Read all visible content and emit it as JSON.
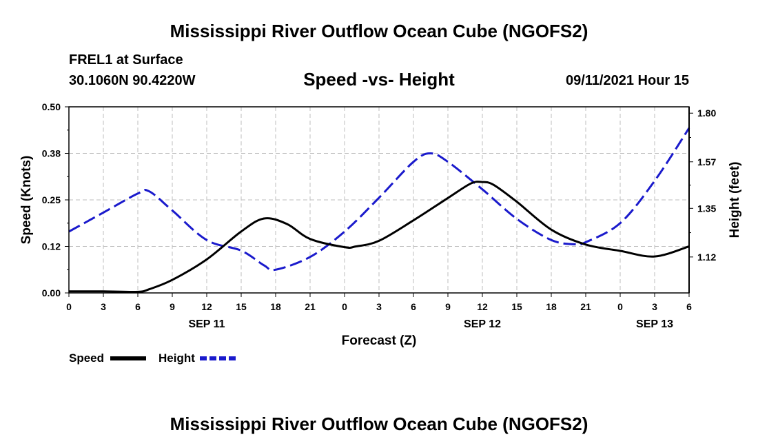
{
  "header": {
    "main_title": "Mississippi River Outflow Ocean Cube (NGOFS2)",
    "station": "FREL1 at Surface",
    "coordinates": "30.1060N  90.4220W",
    "subtitle": "Speed -vs- Height",
    "datetime": "09/11/2021 Hour 15"
  },
  "footer": {
    "title": "Mississippi River Outflow Ocean Cube (NGOFS2)"
  },
  "chart_data": {
    "type": "line",
    "title": "Speed -vs- Height",
    "xlabel": "Forecast (Z)",
    "ylabel_left": "Speed (Knots)",
    "ylabel_right": "Height (feet)",
    "x_range": [
      0,
      54
    ],
    "x_unit": "hours from 09/11/2021 00Z",
    "x_ticks": [
      0,
      3,
      6,
      9,
      12,
      15,
      18,
      21,
      24,
      27,
      30,
      33,
      36,
      39,
      42,
      45,
      48,
      51,
      54
    ],
    "x_tick_labels": [
      "0",
      "3",
      "6",
      "9",
      "12",
      "15",
      "18",
      "21",
      "0",
      "3",
      "6",
      "9",
      "12",
      "15",
      "18",
      "21",
      "0",
      "3",
      "6"
    ],
    "date_labels": [
      {
        "x": 12,
        "label": "SEP 11"
      },
      {
        "x": 36,
        "label": "SEP 12"
      },
      {
        "x": 51,
        "label": "SEP 13"
      }
    ],
    "left_axis": {
      "range": [
        0,
        0.5
      ],
      "ticks": [
        0.0,
        0.125,
        0.25,
        0.375,
        0.5
      ],
      "tick_labels": [
        "0.00",
        "0.12",
        "0.25",
        "0.38",
        "0.50"
      ]
    },
    "right_axis": {
      "range": [
        0.95,
        1.83
      ],
      "ticks": [
        1.12,
        1.35,
        1.57,
        1.8
      ],
      "tick_labels": [
        "1.12",
        "1.35",
        "1.57",
        "1.80"
      ]
    },
    "grid": true,
    "series": [
      {
        "name": "Speed",
        "axis": "left",
        "color": "#000000",
        "dash": "solid",
        "x": [
          0,
          3,
          6,
          7,
          9,
          12,
          15,
          17,
          19,
          21,
          24,
          25,
          27,
          30,
          33,
          35,
          36,
          37,
          39,
          42,
          45,
          48,
          51,
          54
        ],
        "values": [
          0.004,
          0.004,
          0.003,
          0.01,
          0.035,
          0.09,
          0.165,
          0.2,
          0.185,
          0.145,
          0.123,
          0.125,
          0.14,
          0.195,
          0.255,
          0.294,
          0.298,
          0.29,
          0.245,
          0.17,
          0.13,
          0.113,
          0.098,
          0.125
        ]
      },
      {
        "name": "Height",
        "axis": "right",
        "color": "#1a1acc",
        "dash": "dashed",
        "x": [
          0,
          3,
          6,
          7,
          9,
          12,
          15,
          17,
          18,
          21,
          24,
          27,
          30,
          31.5,
          33,
          36,
          39,
          42,
          44,
          45,
          48,
          51,
          54
        ],
        "values": [
          1.24,
          1.33,
          1.42,
          1.43,
          1.34,
          1.2,
          1.15,
          1.08,
          1.06,
          1.12,
          1.24,
          1.4,
          1.57,
          1.61,
          1.57,
          1.44,
          1.3,
          1.2,
          1.18,
          1.19,
          1.28,
          1.48,
          1.73
        ]
      }
    ],
    "legend": {
      "placement": "bottom-left",
      "items": [
        "Speed",
        "Height"
      ]
    }
  }
}
